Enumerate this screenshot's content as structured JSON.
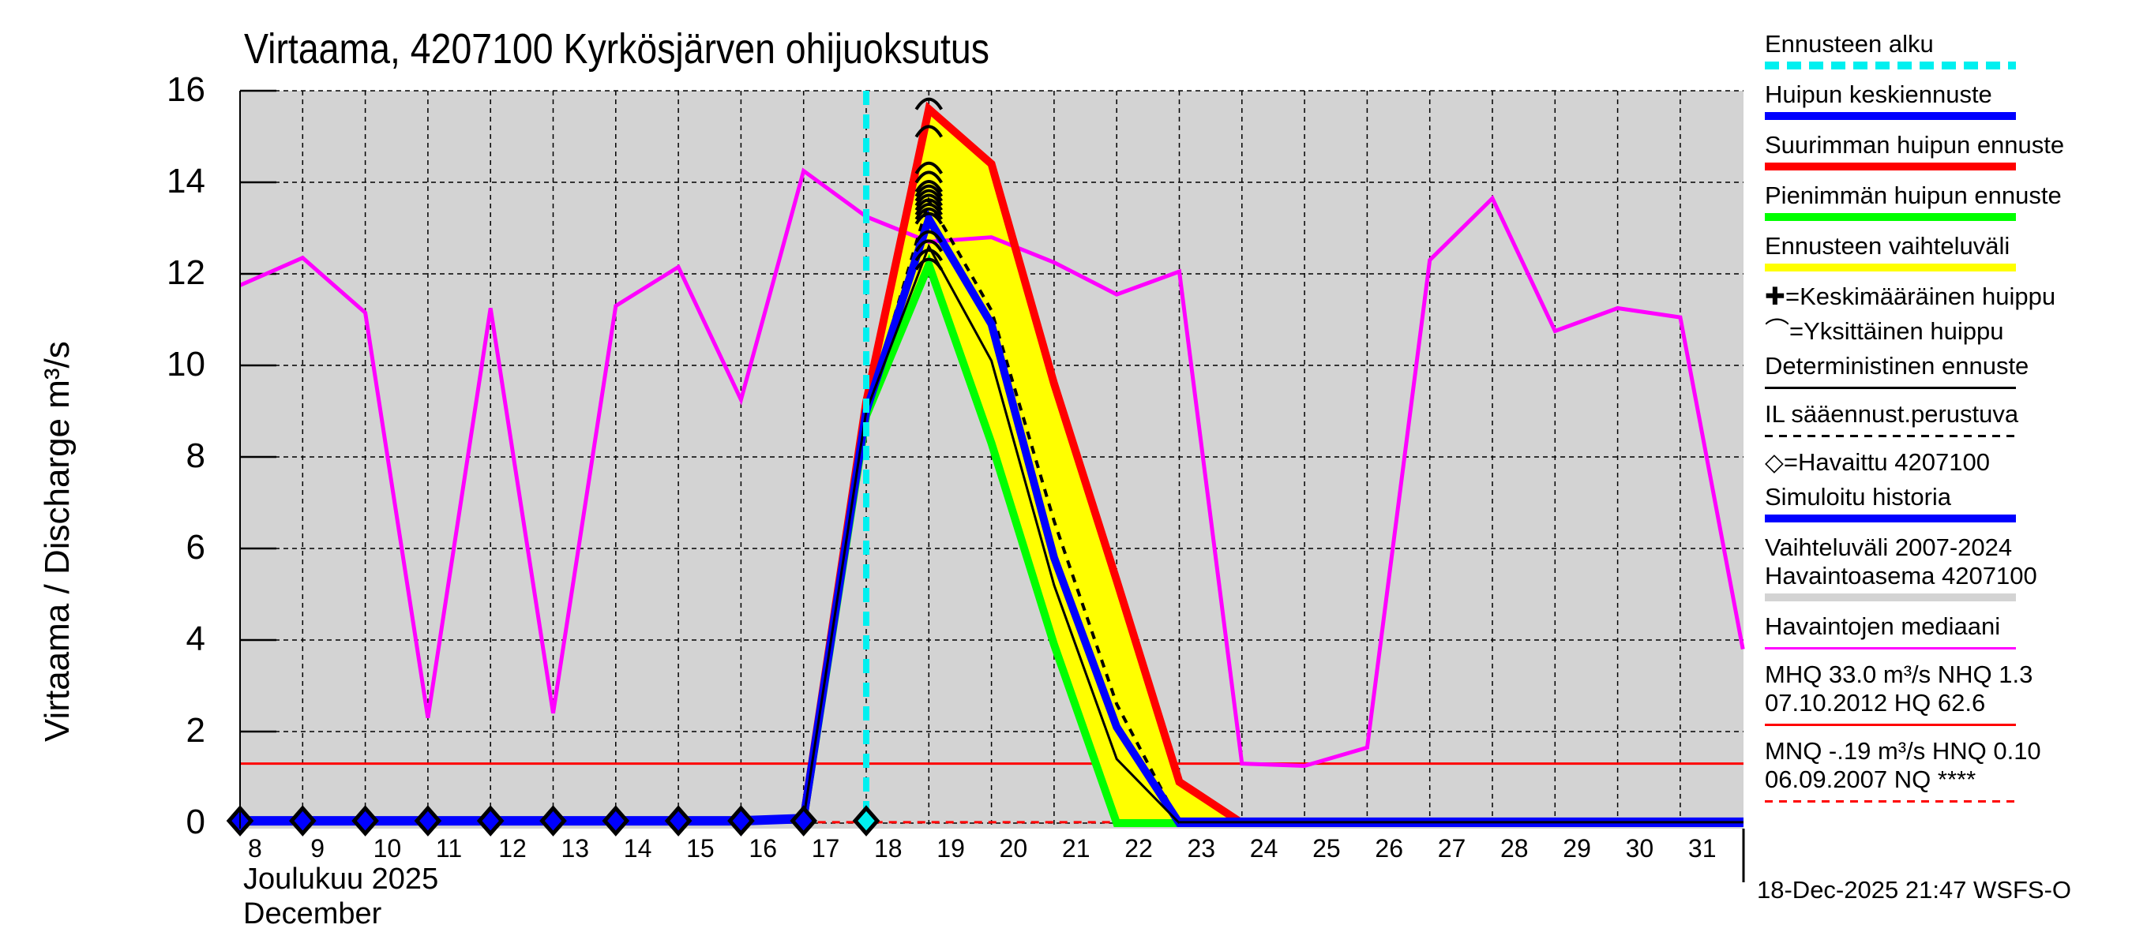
{
  "title": "Virtaama, 4207100 Kyrkösjärven ohijuoksutus",
  "y_axis_label": "Virtaama / Discharge    m³/s",
  "x_axis": {
    "month_label_fi": "Joulukuu  2025",
    "month_label_en": "December"
  },
  "footer": "18-Dec-2025 21:47 WSFS-O",
  "legend": [
    {
      "label": "Ennusteen alku",
      "style": "dashed",
      "color": "#00f0f0"
    },
    {
      "label": "Huipun keskiennuste",
      "style": "solid",
      "color": "#0000ff"
    },
    {
      "label": "Suurimman huipun ennuste",
      "style": "solid",
      "color": "#ff0000"
    },
    {
      "label": "Pienimmän huipun ennuste",
      "style": "solid",
      "color": "#00ff00"
    },
    {
      "label": "Ennusteen vaihteluväli",
      "style": "solid",
      "color": "#ffff00"
    },
    {
      "label": "✚=Keskimääräinen huippu",
      "style": "none",
      "color": "#000000"
    },
    {
      "label": "⌒=Yksittäinen huippu",
      "style": "none",
      "color": "#000000"
    },
    {
      "label": "Deterministinen ennuste",
      "style": "thin",
      "color": "#000000"
    },
    {
      "label": "IL sääennust.perustuva",
      "style": "thin-dashed",
      "color": "#000000"
    },
    {
      "label": "◇=Havaittu 4207100",
      "style": "none",
      "color": "#000000"
    },
    {
      "label": "Simuloitu historia",
      "style": "solid",
      "color": "#0000ff"
    },
    {
      "label": "Vaihteluväli 2007-2024",
      "label2": "Havaintoasema 4207100",
      "style": "solid",
      "color": "#d3d3d3"
    },
    {
      "label": "Havaintojen mediaani",
      "style": "thin",
      "color": "#ff00ff"
    },
    {
      "label": "MHQ 33.0 m³/s NHQ  1.3",
      "label2": "07.10.2012 HQ 62.6",
      "style": "thin",
      "color": "#ff0000"
    },
    {
      "label": "MNQ -.19 m³/s HNQ 0.10",
      "label2": "06.09.2007 NQ ****",
      "style": "thin-dashed",
      "color": "#ff0000"
    }
  ],
  "colors": {
    "plot_bg": "#d3d3d3",
    "forecast_start": "#00f0f0",
    "mean_peak_forecast": "#0000ff",
    "max_peak_forecast": "#ff0000",
    "min_peak_forecast": "#00ff00",
    "forecast_range": "#ffff00",
    "median": "#ff00ff",
    "nhq_line": "#ff0000"
  },
  "chart_data": {
    "type": "line",
    "title": "Virtaama, 4207100 Kyrkösjärven ohijuoksutus",
    "xlabel": "Joulukuu 2025 / December",
    "ylabel": "Virtaama / Discharge m³/s",
    "ylim": [
      0,
      16
    ],
    "xlim": [
      8,
      32
    ],
    "yticks": [
      0,
      2,
      4,
      6,
      8,
      10,
      12,
      14,
      16
    ],
    "x": [
      8,
      9,
      10,
      11,
      12,
      13,
      14,
      15,
      16,
      17,
      18,
      19,
      20,
      21,
      22,
      23,
      24,
      25,
      26,
      27,
      28,
      29,
      30,
      31
    ],
    "xtick_labels": [
      "8",
      "9",
      "10",
      "11",
      "12",
      "13",
      "14",
      "15",
      "16",
      "17",
      "18",
      "19",
      "20",
      "21",
      "22",
      "23",
      "24",
      "25",
      "26",
      "27",
      "28",
      "29",
      "30",
      "31"
    ],
    "grid": true,
    "legend_position": "right",
    "forecast_start_day": 18,
    "nhq_level": 1.3,
    "series": [
      {
        "name": "Havaintojen mediaani",
        "x": [
          8,
          9,
          10,
          11,
          12,
          13,
          14,
          15,
          16,
          17,
          18,
          19,
          20,
          21,
          22,
          23,
          24,
          25,
          26,
          27,
          28,
          29,
          30,
          31,
          32
        ],
        "values": [
          11.75,
          12.35,
          11.15,
          2.3,
          11.25,
          2.4,
          11.3,
          12.15,
          9.25,
          14.25,
          13.25,
          12.7,
          12.8,
          12.25,
          11.55,
          12.05,
          1.3,
          1.25,
          1.65,
          12.3,
          13.65,
          10.75,
          11.25,
          11.05,
          3.8
        ]
      },
      {
        "name": "Simuloitu historia",
        "x": [
          8,
          9,
          10,
          11,
          12,
          13,
          14,
          15,
          16,
          17
        ],
        "values": [
          0.05,
          0.05,
          0.05,
          0.05,
          0.05,
          0.05,
          0.05,
          0.05,
          0.05,
          0.1
        ]
      },
      {
        "name": "Havaittu 4207100",
        "x": [
          8,
          9,
          10,
          11,
          12,
          13,
          14,
          15,
          16,
          17,
          18
        ],
        "values": [
          0.05,
          0.05,
          0.05,
          0.05,
          0.05,
          0.05,
          0.05,
          0.05,
          0.05,
          0.05,
          0.05
        ]
      },
      {
        "name": "Suurimman huipun ennuste",
        "x": [
          17,
          18,
          19,
          20,
          21,
          22,
          23,
          24,
          32
        ],
        "values": [
          0.1,
          9.2,
          15.6,
          14.4,
          9.6,
          5.3,
          0.9,
          0.0,
          0.0
        ]
      },
      {
        "name": "Huipun keskiennuste",
        "x": [
          17,
          18,
          19,
          20,
          21,
          22,
          23,
          32
        ],
        "values": [
          0.1,
          9.0,
          13.2,
          10.9,
          5.8,
          2.1,
          0.0,
          0.0
        ]
      },
      {
        "name": "Pienimmän huipun ennuste",
        "x": [
          17,
          18,
          19,
          20,
          21,
          22,
          23
        ],
        "values": [
          0.1,
          8.9,
          12.2,
          8.3,
          3.9,
          0.0,
          0.0
        ]
      },
      {
        "name": "Deterministinen ennuste",
        "x": [
          17,
          18,
          19,
          20,
          21,
          22,
          23
        ],
        "values": [
          0.1,
          9.0,
          12.6,
          10.1,
          5.2,
          1.4,
          0.0
        ]
      },
      {
        "name": "IL sääennust.perustuva",
        "x": [
          17,
          18,
          19,
          20,
          21,
          22,
          23
        ],
        "values": [
          0.1,
          9.0,
          13.6,
          11.2,
          6.6,
          2.6,
          0.0
        ]
      }
    ],
    "individual_peaks_day19": [
      15.8,
      15.2,
      14.4,
      14.2,
      14.0,
      13.9,
      13.8,
      13.7,
      13.6,
      13.5,
      13.4,
      13.3,
      12.9,
      12.7,
      12.5,
      12.3
    ],
    "mean_peak": {
      "x": 19,
      "value": 13.6
    }
  }
}
